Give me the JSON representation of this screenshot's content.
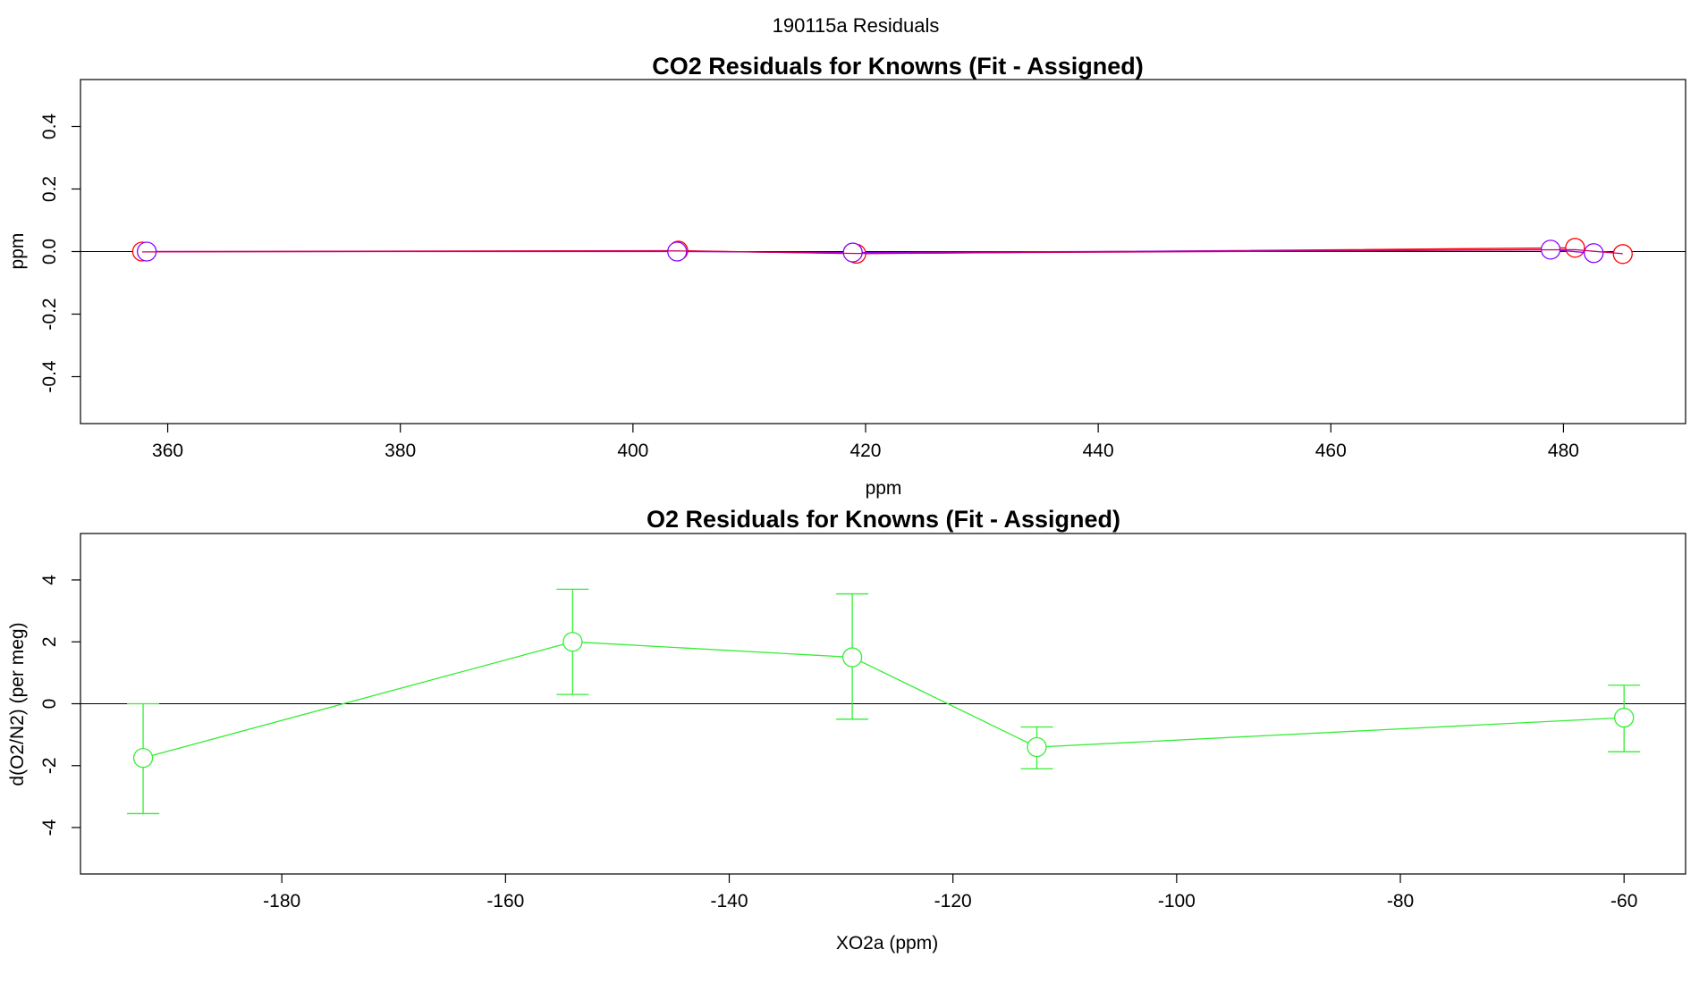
{
  "figure": {
    "title": "190115a  Residuals"
  },
  "chart_data": [
    {
      "type": "line",
      "title": "CO2 Residuals for Knowns (Fit - Assigned)",
      "xlabel": "ppm",
      "ylabel": "ppm",
      "xlim": [
        352.5,
        490.5
      ],
      "ylim": [
        -0.55,
        0.55
      ],
      "xticks": [
        360,
        380,
        400,
        420,
        440,
        460,
        480
      ],
      "yticks": [
        -0.4,
        -0.2,
        0.0,
        0.2,
        0.4
      ],
      "xtick_labels": [
        "360",
        "380",
        "400",
        "420",
        "440",
        "460",
        "480"
      ],
      "ytick_labels": [
        "-0.4",
        "-0.2",
        "0.0",
        "0.2",
        "0.4"
      ],
      "reference_line": 0,
      "grid": false,
      "series": [
        {
          "color": "#ff0000",
          "marker": "open-circle",
          "x": [
            357.8,
            403.9,
            419.2,
            481.0,
            485.1
          ],
          "y": [
            0.0,
            0.003,
            -0.007,
            0.012,
            -0.008
          ]
        },
        {
          "color": "#8800ff",
          "marker": "open-circle",
          "x": [
            358.2,
            403.8,
            418.9,
            478.9,
            482.6
          ],
          "y": [
            0.0,
            0.0,
            -0.003,
            0.006,
            -0.005
          ]
        },
        {
          "color": "#cc0066",
          "marker": "none",
          "x": [
            357.8,
            403.9,
            419.2,
            481.0,
            485.1
          ],
          "y": [
            -0.001,
            0.002,
            -0.006,
            0.006,
            -0.007
          ]
        }
      ]
    },
    {
      "type": "line",
      "title": "O2 Residuals for Knowns (Fit - Assigned)",
      "xlabel": "XO2a (ppm)",
      "ylabel": "d(O2/N2) (per meg)",
      "xlim": [
        -198,
        -54.5
      ],
      "ylim": [
        -5.5,
        5.5
      ],
      "xticks": [
        -180,
        -160,
        -140,
        -120,
        -100,
        -80,
        -60
      ],
      "yticks": [
        -4,
        -2,
        0,
        2,
        4
      ],
      "xtick_labels": [
        "-180",
        "-160",
        "-140",
        "-120",
        "-100",
        "-80",
        "-60"
      ],
      "ytick_labels": [
        "-4",
        "-2",
        "0",
        "2",
        "4"
      ],
      "reference_line": 0,
      "grid": false,
      "series": [
        {
          "color": "#33ee33",
          "marker": "open-circle",
          "x": [
            -192.4,
            -154.0,
            -129.0,
            -112.5,
            -60.0
          ],
          "y": [
            -1.75,
            2.0,
            1.5,
            -1.4,
            -0.45
          ],
          "err_low": [
            -3.55,
            0.3,
            -0.5,
            -2.1,
            -1.55
          ],
          "err_high": [
            0.0,
            3.7,
            3.55,
            -0.75,
            0.6
          ]
        }
      ]
    }
  ]
}
